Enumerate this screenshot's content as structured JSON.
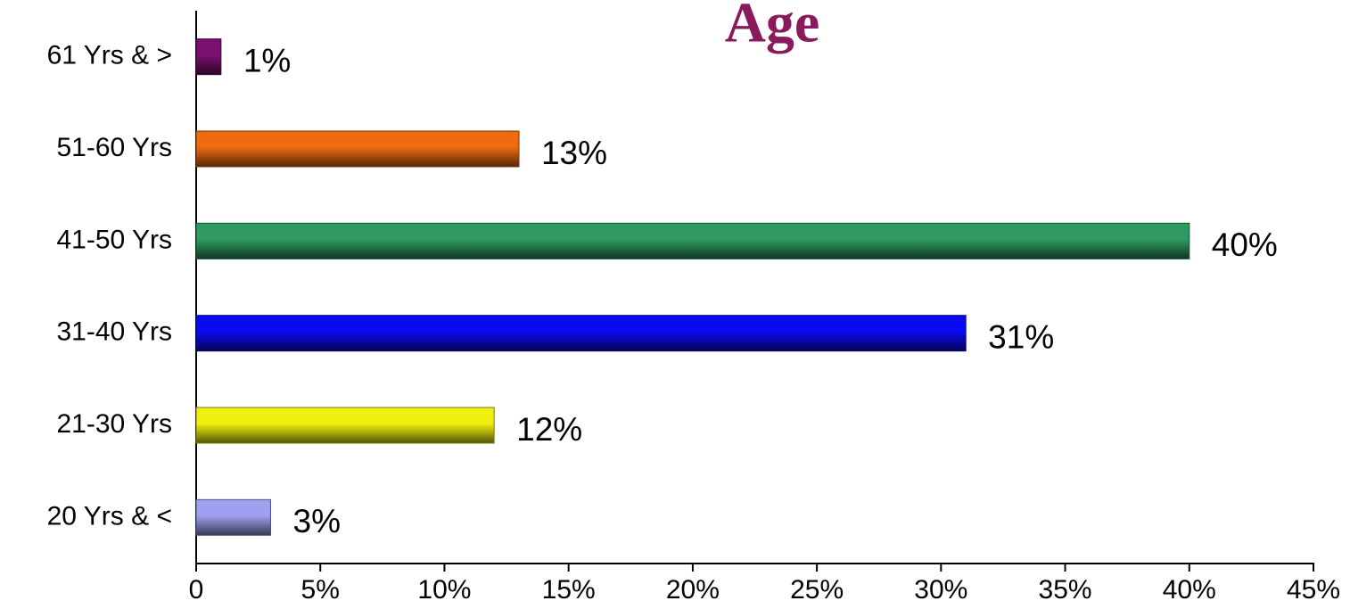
{
  "chart_data": {
    "type": "bar",
    "orientation": "horizontal",
    "title": "Age",
    "categories": [
      "61 Yrs & >",
      "51-60 Yrs",
      "41-50 Yrs",
      "31-40 Yrs",
      "21-30 Yrs",
      "20 Yrs & <"
    ],
    "values": [
      1,
      13,
      40,
      31,
      12,
      3
    ],
    "value_labels": [
      "1%",
      "13%",
      "40%",
      "31%",
      "12%",
      "3%"
    ],
    "colors": [
      "#7a1070",
      "#f06a10",
      "#2f9a62",
      "#0a0af0",
      "#f0f010",
      "#a0a0f0"
    ],
    "xlim": [
      0,
      45
    ],
    "xticks": [
      0,
      {
        "value": 5,
        "label": "5%"
      },
      {
        "value": 10,
        "label": "10%"
      },
      {
        "value": 15,
        "label": "15%"
      },
      {
        "value": 20,
        "label": "20%"
      },
      {
        "value": 25,
        "label": "25%"
      },
      {
        "value": 30,
        "label": "30%"
      },
      {
        "value": 35,
        "label": "35%"
      },
      {
        "value": 40,
        "label": "40%"
      },
      {
        "value": 45,
        "label": "45%"
      }
    ],
    "grid": false
  }
}
